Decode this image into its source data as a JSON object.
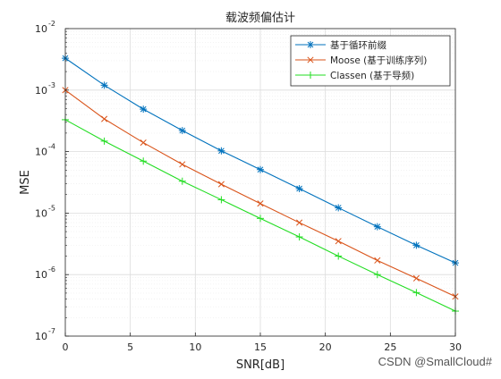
{
  "chart_data": {
    "type": "line",
    "title": "载波频偏估计",
    "xlabel": "SNR[dB]",
    "ylabel": "MSE",
    "xlim": [
      0,
      30
    ],
    "ylim": [
      1e-07,
      0.01
    ],
    "yscale": "log",
    "grid": true,
    "minor_grid": true,
    "legend_position": "top-right",
    "x": [
      0,
      3,
      6,
      9,
      12,
      15,
      18,
      21,
      24,
      27,
      30
    ],
    "xticks": [
      "0",
      "5",
      "10",
      "15",
      "20",
      "25",
      "30"
    ],
    "yticks": [
      "10",
      "10",
      "10",
      "10",
      "10",
      "10"
    ],
    "ytick_exponents": [
      "-7",
      "-6",
      "-5",
      "-4",
      "-3",
      "-2"
    ],
    "series": [
      {
        "name": "基于循环前缀",
        "color": "#0072bd",
        "marker": "asterisk",
        "values": [
          0.0033,
          0.0012,
          0.00049,
          0.00022,
          0.000103,
          5.1e-05,
          2.5e-05,
          1.22e-05,
          6e-06,
          3e-06,
          1.55e-06
        ]
      },
      {
        "name": "Moose (基于训练序列)",
        "color": "#d95319",
        "marker": "x",
        "values": [
          0.001,
          0.00034,
          0.00014,
          6.2e-05,
          2.95e-05,
          1.43e-05,
          7e-06,
          3.5e-06,
          1.7e-06,
          8.7e-07,
          4.4e-07
        ]
      },
      {
        "name": "Classen (基于导频)",
        "color": "#22dd22",
        "marker": "plus",
        "values": [
          0.00033,
          0.000148,
          7e-05,
          3.3e-05,
          1.65e-05,
          8.2e-06,
          4.1e-06,
          2e-06,
          1e-06,
          5.1e-07,
          2.55e-07
        ]
      }
    ]
  },
  "watermark": "CSDN @SmallCloud#"
}
